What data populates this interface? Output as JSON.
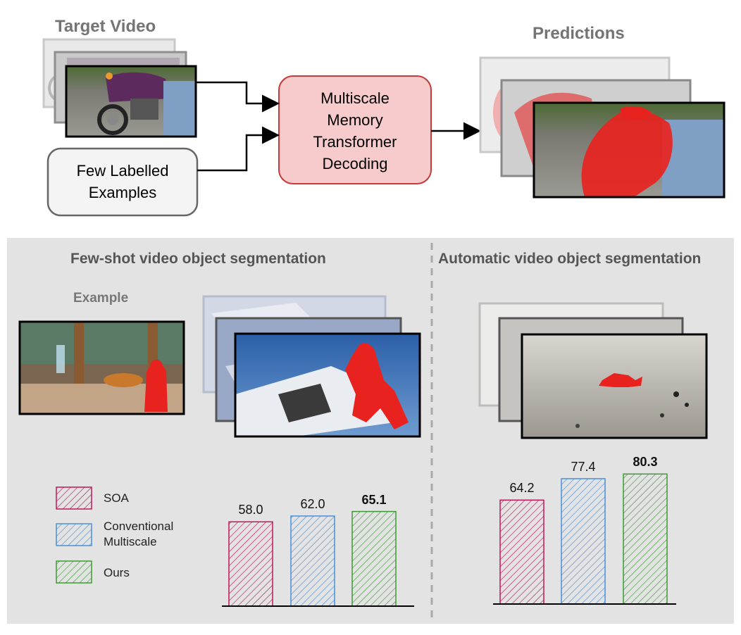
{
  "top": {
    "target_video_label": "Target Video",
    "predictions_label": "Predictions",
    "few_labelled_label": "Few Labelled Examples",
    "decoder_label": "Multiscale Memory Transformer Decoding"
  },
  "panels": {
    "left_title": "Few-shot video object segmentation",
    "right_title": "Automatic video object segmentation",
    "example_label": "Example"
  },
  "legend": [
    {
      "label": "SOA",
      "color": "#c2185b"
    },
    {
      "label": "Conventional Multiscale",
      "color": "#4a90d9"
    },
    {
      "label": "Ours",
      "color": "#3d9b35"
    }
  ],
  "chart_data": [
    {
      "type": "bar",
      "categories": [
        "SOA",
        "Conventional Multiscale",
        "Ours"
      ],
      "values": [
        58.0,
        62.0,
        65.1
      ],
      "labels": [
        "58.0",
        "62.0",
        "65.1"
      ],
      "colors": [
        "#c2185b",
        "#4a90d9",
        "#3d9b35"
      ]
    },
    {
      "type": "bar",
      "categories": [
        "SOA",
        "Conventional Multiscale",
        "Ours"
      ],
      "values": [
        64.2,
        77.4,
        80.3
      ],
      "labels": [
        "64.2",
        "77.4",
        "80.3"
      ],
      "colors": [
        "#c2185b",
        "#4a90d9",
        "#3d9b35"
      ]
    }
  ]
}
